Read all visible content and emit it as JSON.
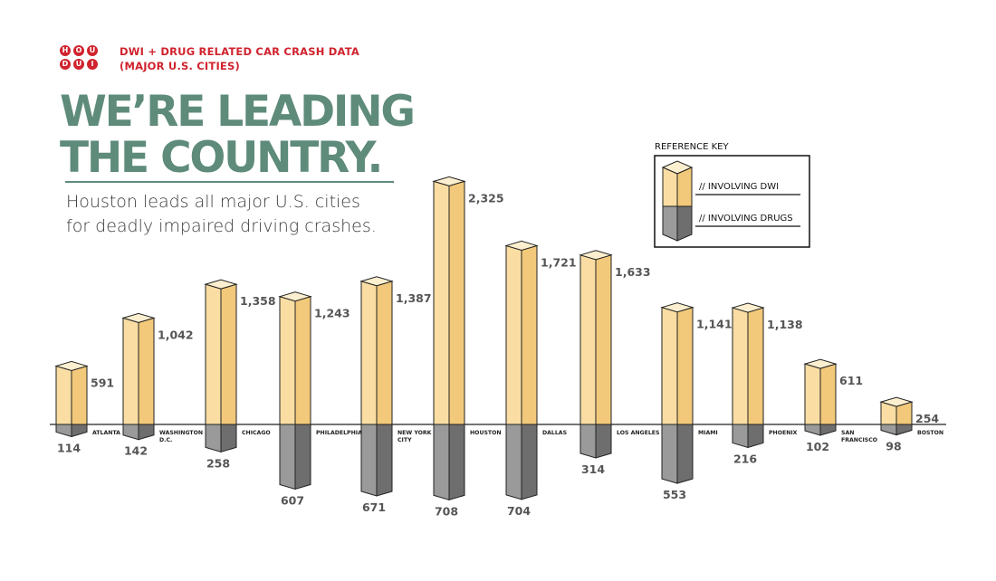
{
  "brand": {
    "logo_top": [
      "H",
      "O",
      "U"
    ],
    "logo_bottom": [
      "D",
      "U",
      "I"
    ],
    "accent_color": "#d0232e"
  },
  "header": {
    "line1": "DWI + DRUG RELATED CAR CRASH DATA",
    "line2": "(MAJOR U.S. CITIES)"
  },
  "headline": {
    "line1": "WE’RE LEADING",
    "line2": "THE COUNTRY.",
    "color": "#5e8b7a"
  },
  "subtitle": {
    "line1": "Houston leads all major U.S. cities",
    "line2": "for deadly impaired driving crashes."
  },
  "chart_data": {
    "type": "bar",
    "style": "3d-diverging",
    "categories": [
      "ATLANTA",
      "WASHINGTON D.C.",
      "CHICAGO",
      "PHILADELPHIA",
      "NEW YORK CITY",
      "HOUSTON",
      "DALLAS",
      "LOS ANGELES",
      "MIAMI",
      "PHOENIX",
      "SAN FRANCISCO",
      "BOSTON"
    ],
    "category_lines": [
      [
        "ATLANTA"
      ],
      [
        "WASHINGTON",
        "D.C."
      ],
      [
        "CHICAGO"
      ],
      [
        "PHILADELPHIA"
      ],
      [
        "NEW YORK",
        "CITY"
      ],
      [
        "HOUSTON"
      ],
      [
        "DALLAS"
      ],
      [
        "LOS ANGELES"
      ],
      [
        "MIAMI"
      ],
      [
        "PHOENIX"
      ],
      [
        "SAN",
        "FRANCISCO"
      ],
      [
        "BOSTON"
      ]
    ],
    "series": [
      {
        "name": "// INVOLVING DWI",
        "direction": "up",
        "color": "#f8d99a",
        "labels": [
          "591",
          "1,042",
          "1,358",
          "1,243",
          "1,387",
          "2,325",
          "1,721",
          "1,633",
          "1,141",
          "1,138",
          "611",
          "254"
        ],
        "values": [
          591,
          1042,
          1358,
          1243,
          1387,
          2325,
          1721,
          1633,
          1141,
          1138,
          611,
          254
        ]
      },
      {
        "name": "// INVOLVING DRUGS",
        "direction": "down",
        "color": "#8b8b8b",
        "labels": [
          "114",
          "142",
          "258",
          "607",
          "671",
          "708",
          "704",
          "314",
          "553",
          "216",
          "102",
          "98"
        ],
        "values": [
          114,
          142,
          258,
          607,
          671,
          708,
          704,
          314,
          553,
          216,
          102,
          98
        ]
      }
    ],
    "legend": {
      "title": "REFERENCE KEY",
      "placement": "top-right"
    },
    "grid": false
  }
}
